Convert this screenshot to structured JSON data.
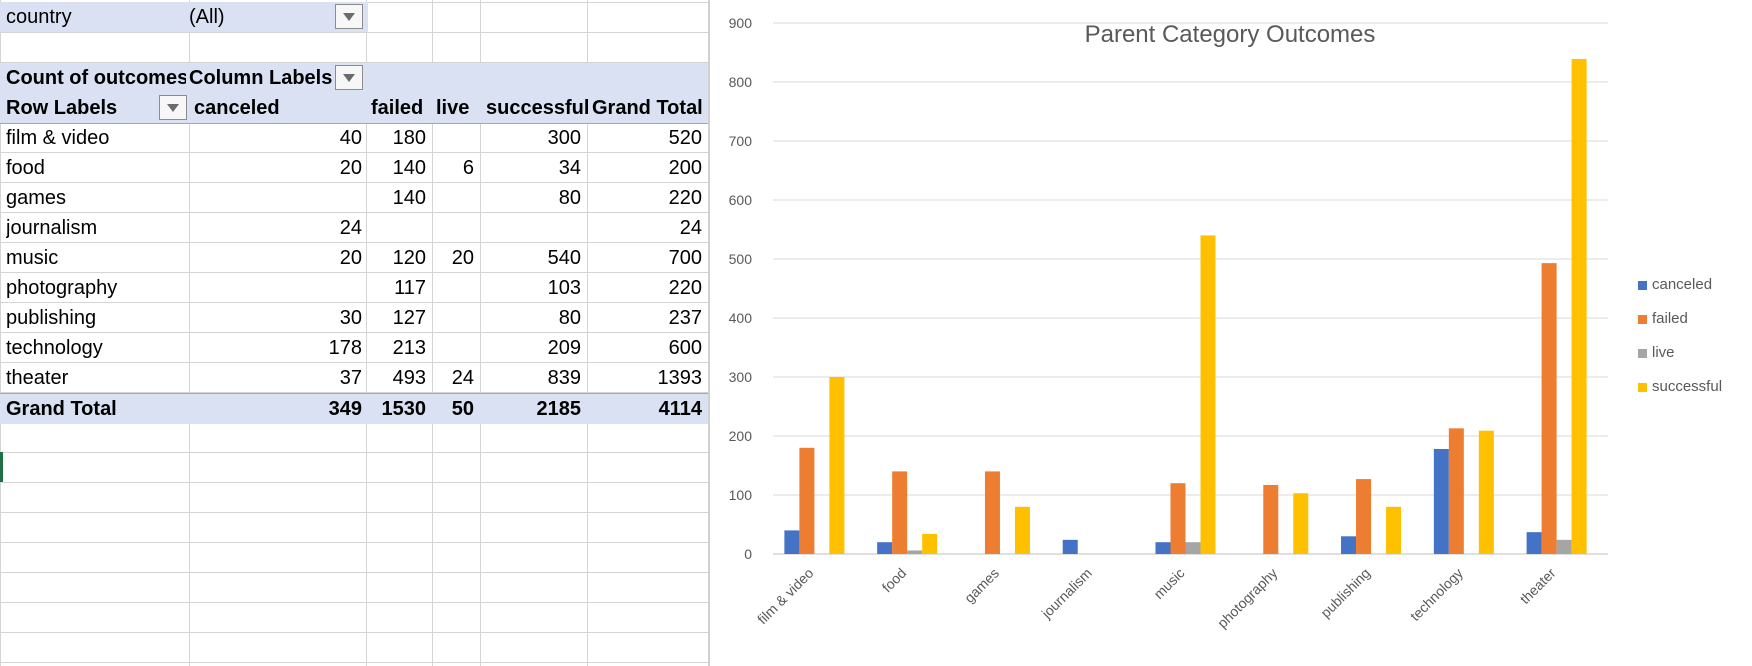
{
  "filter": {
    "field_label": "country",
    "value": "(All)"
  },
  "pivot": {
    "corner_label": "Count of outcomes",
    "column_labels_label": "Column Labels",
    "row_labels_label": "Row Labels",
    "columns": [
      "canceled",
      "failed",
      "live",
      "successful",
      "Grand Total"
    ],
    "rows": [
      {
        "label": "film & video",
        "values": [
          "40",
          "180",
          "",
          "300",
          "520"
        ]
      },
      {
        "label": "food",
        "values": [
          "20",
          "140",
          "6",
          "34",
          "200"
        ]
      },
      {
        "label": "games",
        "values": [
          "",
          "140",
          "",
          "80",
          "220"
        ]
      },
      {
        "label": "journalism",
        "values": [
          "24",
          "",
          "",
          "",
          "24"
        ]
      },
      {
        "label": "music",
        "values": [
          "20",
          "120",
          "20",
          "540",
          "700"
        ]
      },
      {
        "label": "photography",
        "values": [
          "",
          "117",
          "",
          "103",
          "220"
        ]
      },
      {
        "label": "publishing",
        "values": [
          "30",
          "127",
          "",
          "80",
          "237"
        ]
      },
      {
        "label": "technology",
        "values": [
          "178",
          "213",
          "",
          "209",
          "600"
        ]
      },
      {
        "label": "theater",
        "values": [
          "37",
          "493",
          "24",
          "839",
          "1393"
        ]
      }
    ],
    "grand_total": {
      "label": "Grand Total",
      "values": [
        "349",
        "1530",
        "50",
        "2185",
        "4114"
      ]
    }
  },
  "chart_data": {
    "type": "bar",
    "title": "Parent Category Outcomes",
    "xlabel": "",
    "ylabel": "",
    "ylim": [
      0,
      900
    ],
    "yticks": [
      0,
      100,
      200,
      300,
      400,
      500,
      600,
      700,
      800,
      900
    ],
    "grid": true,
    "legend_position": "right",
    "categories": [
      "film & video",
      "food",
      "games",
      "journalism",
      "music",
      "photography",
      "publishing",
      "technology",
      "theater"
    ],
    "series": [
      {
        "name": "canceled",
        "color": "#4472c4",
        "values": [
          40,
          20,
          0,
          24,
          20,
          0,
          30,
          178,
          37
        ]
      },
      {
        "name": "failed",
        "color": "#ed7d31",
        "values": [
          180,
          140,
          140,
          0,
          120,
          117,
          127,
          213,
          493
        ]
      },
      {
        "name": "live",
        "color": "#a5a5a5",
        "values": [
          0,
          6,
          0,
          0,
          20,
          0,
          0,
          0,
          24
        ]
      },
      {
        "name": "successful",
        "color": "#ffc000",
        "values": [
          300,
          34,
          80,
          0,
          540,
          103,
          80,
          209,
          839
        ]
      }
    ]
  }
}
